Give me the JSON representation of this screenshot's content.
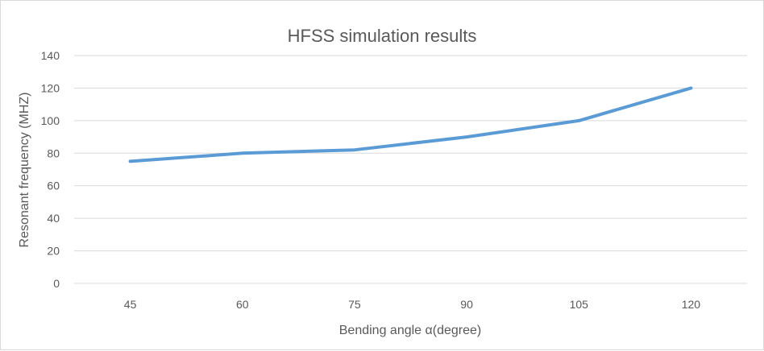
{
  "chart_data": {
    "type": "line",
    "title": "HFSS simulation results",
    "xlabel": "Bending angle α(degree)",
    "ylabel": "Resonant frequency (MHZ)",
    "categories": [
      "45",
      "60",
      "75",
      "90",
      "105",
      "120"
    ],
    "series": [
      {
        "values": [
          75,
          80,
          82,
          90,
          100,
          120
        ],
        "color": "#5b9bd5"
      }
    ],
    "ylim": [
      0,
      140
    ],
    "yticks": [
      0,
      20,
      40,
      60,
      80,
      100,
      120,
      140
    ],
    "grid": true,
    "legend": "none"
  }
}
